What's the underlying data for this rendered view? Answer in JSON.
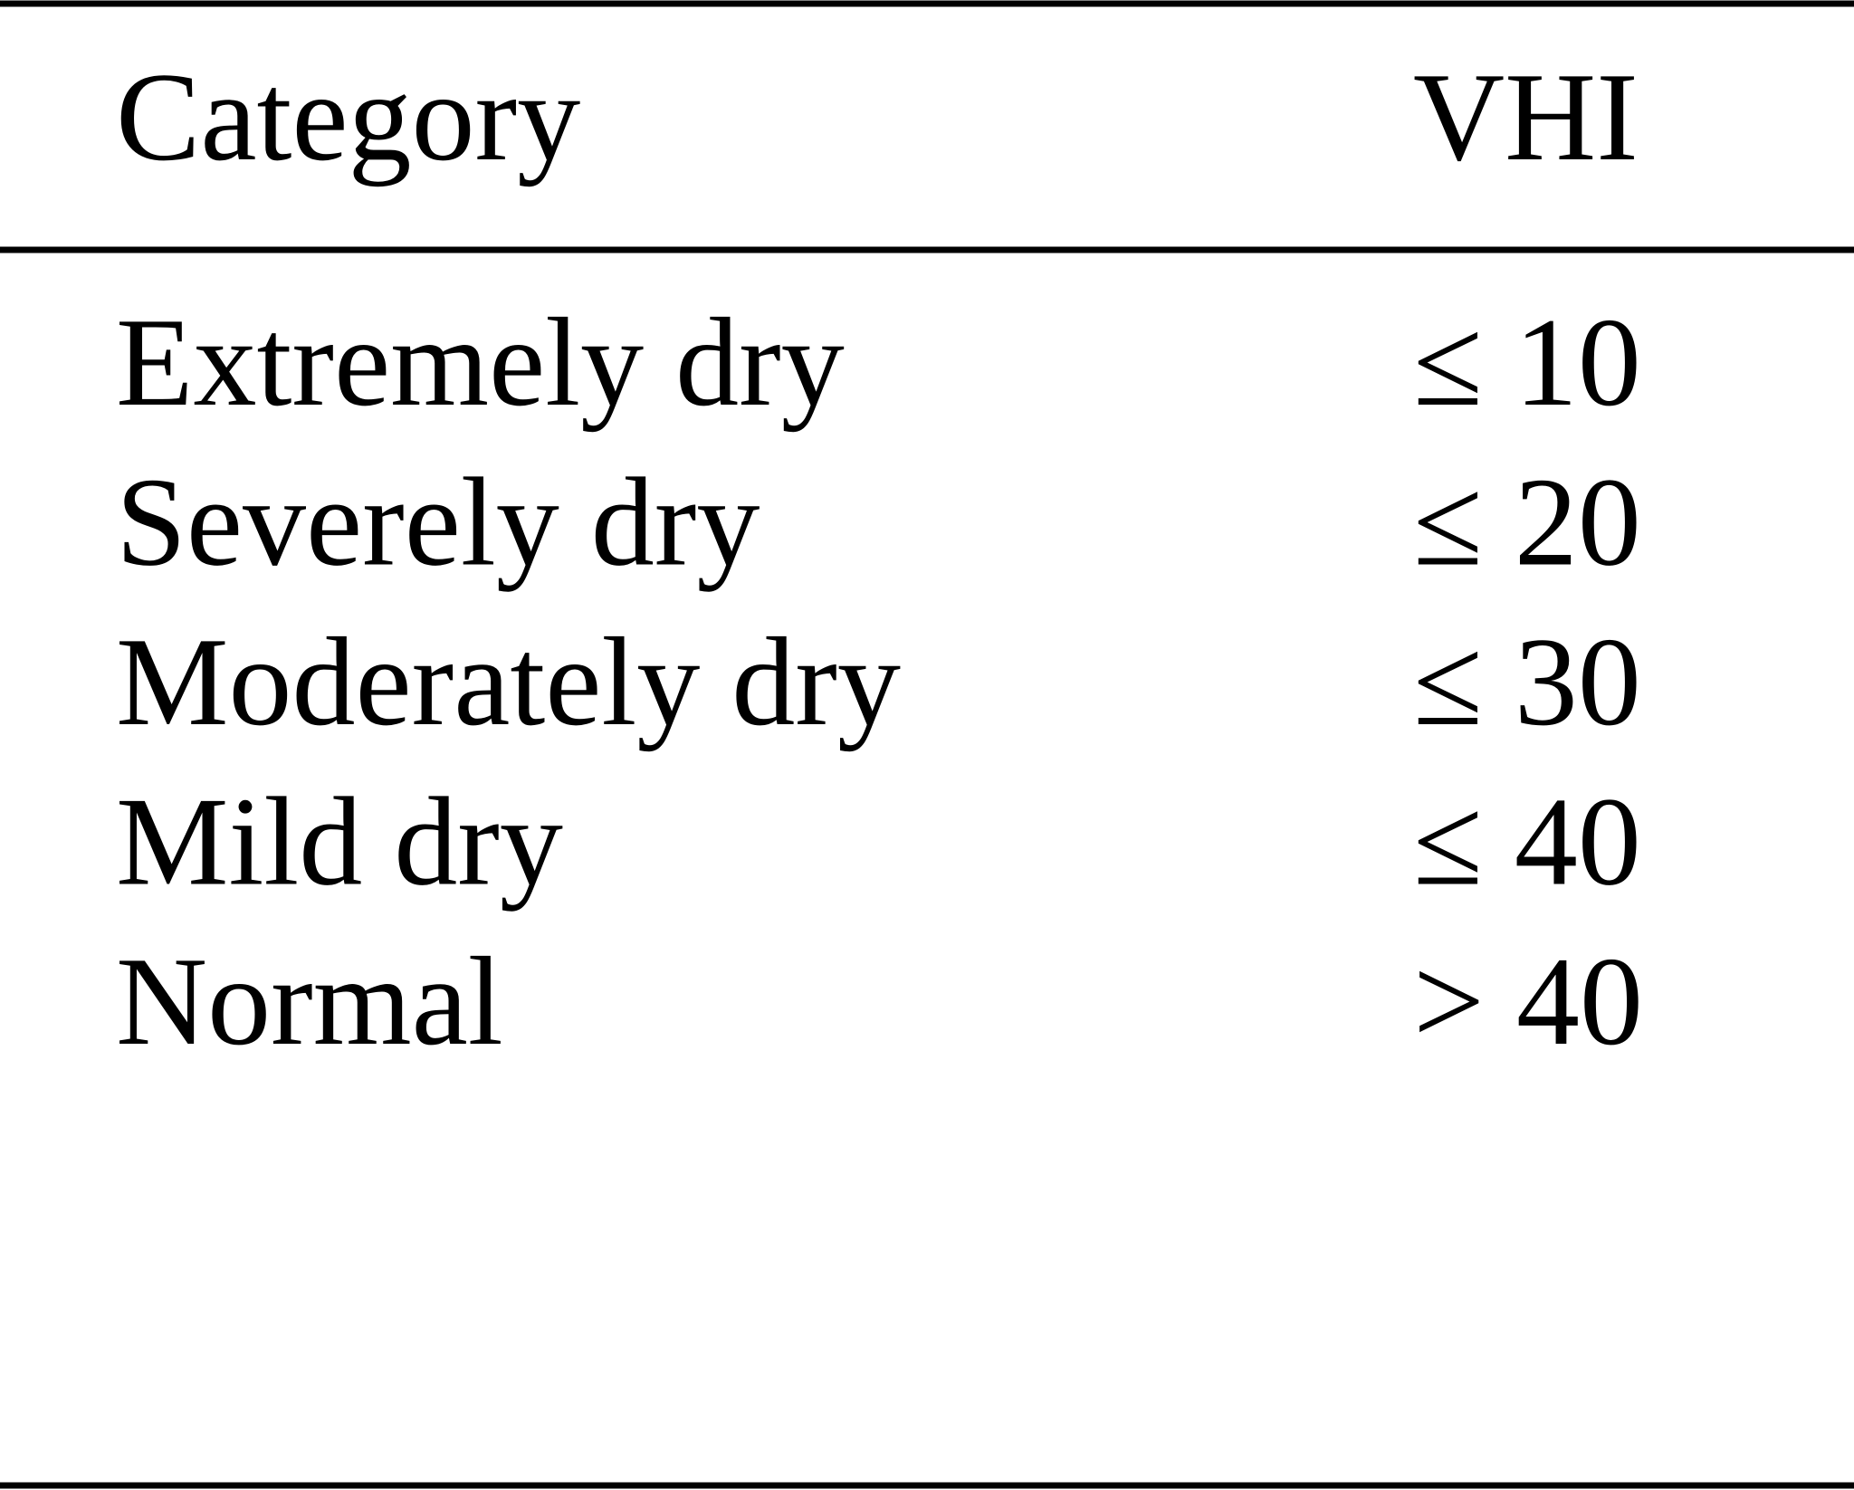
{
  "table": {
    "header": [
      "Category",
      "VHI"
    ],
    "rows": [
      [
        "Extremely dry",
        "≤ 10"
      ],
      [
        "Severely dry",
        "≤ 20"
      ],
      [
        "Moderately dry",
        "≤ 30"
      ],
      [
        "Mild dry",
        "≤ 40"
      ],
      [
        "Normal",
        "> 40"
      ]
    ]
  }
}
